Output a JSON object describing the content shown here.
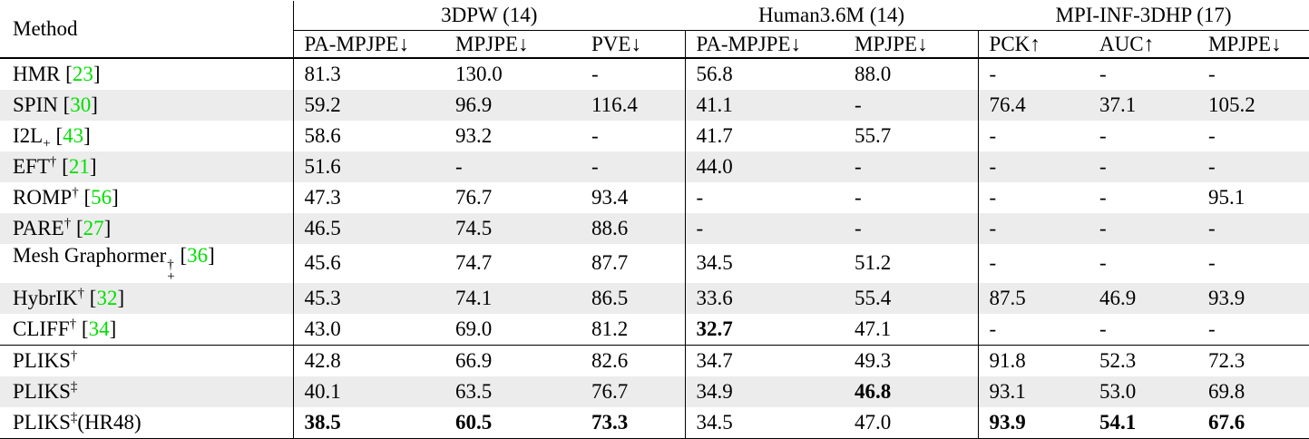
{
  "table": {
    "method_header": "Method",
    "groups": [
      {
        "label": "3DPW (14)",
        "cols": [
          "PA-MPJPE↓",
          "MPJPE↓",
          "PVE↓"
        ]
      },
      {
        "label": "Human3.6M (14)",
        "cols": [
          "PA-MPJPE↓",
          "MPJPE↓"
        ]
      },
      {
        "label": "MPI-INF-3DHP (17)",
        "cols": [
          "PCK↑",
          "AUC↑",
          "MPJPE↓"
        ]
      }
    ],
    "rows": [
      {
        "method": {
          "base": "HMR",
          "sup": "",
          "sub": "",
          "suffix": "",
          "cite": "23"
        },
        "values": [
          "81.3",
          "130.0",
          "-",
          "56.8",
          "88.0",
          "-",
          "-",
          "-"
        ],
        "bold": [],
        "shaded": false,
        "rule_above": false,
        "tall": false
      },
      {
        "method": {
          "base": "SPIN",
          "sup": "",
          "sub": "",
          "suffix": "",
          "cite": "30"
        },
        "values": [
          "59.2",
          "96.9",
          "116.4",
          "41.1",
          "-",
          "76.4",
          "37.1",
          "105.2"
        ],
        "bold": [],
        "shaded": true,
        "rule_above": false,
        "tall": false
      },
      {
        "method": {
          "base": "I2L",
          "sup": "",
          "sub": "+",
          "suffix": "",
          "cite": "43"
        },
        "values": [
          "58.6",
          "93.2",
          "-",
          "41.7",
          "55.7",
          "-",
          "-",
          "-"
        ],
        "bold": [],
        "shaded": false,
        "rule_above": false,
        "tall": false
      },
      {
        "method": {
          "base": "EFT",
          "sup": "†",
          "sub": "",
          "suffix": "",
          "cite": "21"
        },
        "values": [
          "51.6",
          "-",
          "-",
          "44.0",
          "-",
          "-",
          "-",
          "-"
        ],
        "bold": [],
        "shaded": true,
        "rule_above": false,
        "tall": false
      },
      {
        "method": {
          "base": "ROMP",
          "sup": "†",
          "sub": "",
          "suffix": "",
          "cite": "56"
        },
        "values": [
          "47.3",
          "76.7",
          "93.4",
          "-",
          "-",
          "-",
          "-",
          "95.1"
        ],
        "bold": [],
        "shaded": false,
        "rule_above": false,
        "tall": false
      },
      {
        "method": {
          "base": "PARE",
          "sup": "†",
          "sub": "",
          "suffix": "",
          "cite": "27"
        },
        "values": [
          "46.5",
          "74.5",
          "88.6",
          "-",
          "-",
          "-",
          "-",
          "-"
        ],
        "bold": [],
        "shaded": true,
        "rule_above": false,
        "tall": false
      },
      {
        "method": {
          "base": "Mesh Graphormer",
          "sup": "†",
          "sub": "+",
          "suffix": "",
          "cite": "36"
        },
        "values": [
          "45.6",
          "74.7",
          "87.7",
          "34.5",
          "51.2",
          "-",
          "-",
          "-"
        ],
        "bold": [],
        "shaded": false,
        "rule_above": false,
        "tall": true
      },
      {
        "method": {
          "base": "HybrIK",
          "sup": "†",
          "sub": "",
          "suffix": "",
          "cite": "32"
        },
        "values": [
          "45.3",
          "74.1",
          "86.5",
          "33.6",
          "55.4",
          "87.5",
          "46.9",
          "93.9"
        ],
        "bold": [],
        "shaded": true,
        "rule_above": false,
        "tall": false
      },
      {
        "method": {
          "base": "CLIFF",
          "sup": "†",
          "sub": "",
          "suffix": "",
          "cite": "34"
        },
        "values": [
          "43.0",
          "69.0",
          "81.2",
          "32.7",
          "47.1",
          "-",
          "-",
          "-"
        ],
        "bold": [
          3
        ],
        "shaded": false,
        "rule_above": false,
        "tall": false
      },
      {
        "method": {
          "base": "PLIKS",
          "sup": "†",
          "sub": "",
          "suffix": "",
          "cite": ""
        },
        "values": [
          "42.8",
          "66.9",
          "82.6",
          "34.7",
          "49.3",
          "91.8",
          "52.3",
          "72.3"
        ],
        "bold": [],
        "shaded": false,
        "rule_above": true,
        "tall": false
      },
      {
        "method": {
          "base": "PLIKS",
          "sup": "‡",
          "sub": "",
          "suffix": "",
          "cite": ""
        },
        "values": [
          "40.1",
          "63.5",
          "76.7",
          "34.9",
          "46.8",
          "93.1",
          "53.0",
          "69.8"
        ],
        "bold": [
          4
        ],
        "shaded": true,
        "rule_above": false,
        "tall": false
      },
      {
        "method": {
          "base": "PLIKS",
          "sup": "‡",
          "sub": "",
          "suffix": "(HR48)",
          "cite": ""
        },
        "values": [
          "38.5",
          "60.5",
          "73.3",
          "34.5",
          "47.0",
          "93.9",
          "54.1",
          "67.6"
        ],
        "bold": [
          0,
          1,
          2,
          5,
          6,
          7
        ],
        "shaded": false,
        "rule_above": false,
        "tall": false
      }
    ]
  },
  "colors": {
    "cite_green": "#00e000",
    "row_stripe": "#ececec"
  }
}
